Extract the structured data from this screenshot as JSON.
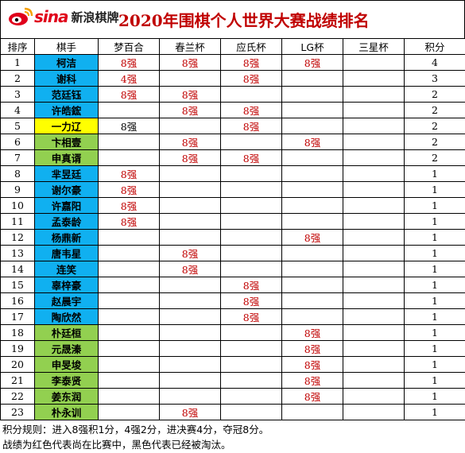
{
  "brand": {
    "logo_word": "sina",
    "logo_text": "新浪棋牌"
  },
  "title": "2020年围棋个人世界大赛战绩排名",
  "colors": {
    "alive": "#c00000",
    "eliminated": "#000000",
    "blue": "#10b0f0",
    "yellow": "#ffff00",
    "green": "#92d050"
  },
  "columns": [
    "排序",
    "棋手",
    "梦百合",
    "春兰杯",
    "应氏杯",
    "LG杯",
    "三星杯",
    "积分"
  ],
  "rows": [
    {
      "rank": "1",
      "name": "柯洁",
      "color": "blue",
      "cells": [
        {
          "t": "8强",
          "s": "red"
        },
        {
          "t": "8强",
          "s": "red"
        },
        {
          "t": "8强",
          "s": "red"
        },
        {
          "t": "8强",
          "s": "red"
        },
        {
          "t": "",
          "s": ""
        }
      ],
      "points": "4"
    },
    {
      "rank": "2",
      "name": "谢科",
      "color": "blue",
      "cells": [
        {
          "t": "4强",
          "s": "red"
        },
        {
          "t": "",
          "s": ""
        },
        {
          "t": "8强",
          "s": "red"
        },
        {
          "t": "",
          "s": ""
        },
        {
          "t": "",
          "s": ""
        }
      ],
      "points": "3"
    },
    {
      "rank": "3",
      "name": "范廷钰",
      "color": "blue",
      "cells": [
        {
          "t": "8强",
          "s": "red"
        },
        {
          "t": "8强",
          "s": "red"
        },
        {
          "t": "",
          "s": ""
        },
        {
          "t": "",
          "s": ""
        },
        {
          "t": "",
          "s": ""
        }
      ],
      "points": "2"
    },
    {
      "rank": "4",
      "name": "许皓鋐",
      "color": "blue",
      "cells": [
        {
          "t": "",
          "s": ""
        },
        {
          "t": "8强",
          "s": "red"
        },
        {
          "t": "8强",
          "s": "red"
        },
        {
          "t": "",
          "s": ""
        },
        {
          "t": "",
          "s": ""
        }
      ],
      "points": "2"
    },
    {
      "rank": "5",
      "name": "一力辽",
      "color": "yellow",
      "cells": [
        {
          "t": "8强",
          "s": "black"
        },
        {
          "t": "",
          "s": ""
        },
        {
          "t": "8强",
          "s": "red"
        },
        {
          "t": "",
          "s": ""
        },
        {
          "t": "",
          "s": ""
        }
      ],
      "points": "2"
    },
    {
      "rank": "6",
      "name": "卞相壹",
      "color": "green",
      "cells": [
        {
          "t": "",
          "s": ""
        },
        {
          "t": "8强",
          "s": "red"
        },
        {
          "t": "",
          "s": ""
        },
        {
          "t": "8强",
          "s": "red"
        },
        {
          "t": "",
          "s": ""
        }
      ],
      "points": "2"
    },
    {
      "rank": "7",
      "name": "申真谞",
      "color": "green",
      "cells": [
        {
          "t": "",
          "s": ""
        },
        {
          "t": "8强",
          "s": "red"
        },
        {
          "t": "8强",
          "s": "red"
        },
        {
          "t": "",
          "s": ""
        },
        {
          "t": "",
          "s": ""
        }
      ],
      "points": "2"
    },
    {
      "rank": "8",
      "name": "芈昱廷",
      "color": "blue",
      "cells": [
        {
          "t": "8强",
          "s": "red"
        },
        {
          "t": "",
          "s": ""
        },
        {
          "t": "",
          "s": ""
        },
        {
          "t": "",
          "s": ""
        },
        {
          "t": "",
          "s": ""
        }
      ],
      "points": "1"
    },
    {
      "rank": "9",
      "name": "谢尔豪",
      "color": "blue",
      "cells": [
        {
          "t": "8强",
          "s": "red"
        },
        {
          "t": "",
          "s": ""
        },
        {
          "t": "",
          "s": ""
        },
        {
          "t": "",
          "s": ""
        },
        {
          "t": "",
          "s": ""
        }
      ],
      "points": "1"
    },
    {
      "rank": "10",
      "name": "许嘉阳",
      "color": "blue",
      "cells": [
        {
          "t": "8强",
          "s": "red"
        },
        {
          "t": "",
          "s": ""
        },
        {
          "t": "",
          "s": ""
        },
        {
          "t": "",
          "s": ""
        },
        {
          "t": "",
          "s": ""
        }
      ],
      "points": "1"
    },
    {
      "rank": "11",
      "name": "孟泰龄",
      "color": "blue",
      "cells": [
        {
          "t": "8强",
          "s": "red"
        },
        {
          "t": "",
          "s": ""
        },
        {
          "t": "",
          "s": ""
        },
        {
          "t": "",
          "s": ""
        },
        {
          "t": "",
          "s": ""
        }
      ],
      "points": "1"
    },
    {
      "rank": "12",
      "name": "杨鼎新",
      "color": "blue",
      "cells": [
        {
          "t": "",
          "s": ""
        },
        {
          "t": "",
          "s": ""
        },
        {
          "t": "",
          "s": ""
        },
        {
          "t": "8强",
          "s": "red"
        },
        {
          "t": "",
          "s": ""
        }
      ],
      "points": "1"
    },
    {
      "rank": "13",
      "name": "唐韦星",
      "color": "blue",
      "cells": [
        {
          "t": "",
          "s": ""
        },
        {
          "t": "8强",
          "s": "red"
        },
        {
          "t": "",
          "s": ""
        },
        {
          "t": "",
          "s": ""
        },
        {
          "t": "",
          "s": ""
        }
      ],
      "points": "1"
    },
    {
      "rank": "14",
      "name": "连笑",
      "color": "blue",
      "cells": [
        {
          "t": "",
          "s": ""
        },
        {
          "t": "8强",
          "s": "red"
        },
        {
          "t": "",
          "s": ""
        },
        {
          "t": "",
          "s": ""
        },
        {
          "t": "",
          "s": ""
        }
      ],
      "points": "1"
    },
    {
      "rank": "15",
      "name": "辜梓豪",
      "color": "blue",
      "cells": [
        {
          "t": "",
          "s": ""
        },
        {
          "t": "",
          "s": ""
        },
        {
          "t": "8强",
          "s": "red"
        },
        {
          "t": "",
          "s": ""
        },
        {
          "t": "",
          "s": ""
        }
      ],
      "points": "1"
    },
    {
      "rank": "16",
      "name": "赵晨宇",
      "color": "blue",
      "cells": [
        {
          "t": "",
          "s": ""
        },
        {
          "t": "",
          "s": ""
        },
        {
          "t": "8强",
          "s": "red"
        },
        {
          "t": "",
          "s": ""
        },
        {
          "t": "",
          "s": ""
        }
      ],
      "points": "1"
    },
    {
      "rank": "17",
      "name": "陶欣然",
      "color": "blue",
      "cells": [
        {
          "t": "",
          "s": ""
        },
        {
          "t": "",
          "s": ""
        },
        {
          "t": "8强",
          "s": "red"
        },
        {
          "t": "",
          "s": ""
        },
        {
          "t": "",
          "s": ""
        }
      ],
      "points": "1"
    },
    {
      "rank": "18",
      "name": "朴廷桓",
      "color": "green",
      "cells": [
        {
          "t": "",
          "s": ""
        },
        {
          "t": "",
          "s": ""
        },
        {
          "t": "",
          "s": ""
        },
        {
          "t": "8强",
          "s": "red"
        },
        {
          "t": "",
          "s": ""
        }
      ],
      "points": "1"
    },
    {
      "rank": "19",
      "name": "元晟溱",
      "color": "green",
      "cells": [
        {
          "t": "",
          "s": ""
        },
        {
          "t": "",
          "s": ""
        },
        {
          "t": "",
          "s": ""
        },
        {
          "t": "8强",
          "s": "red"
        },
        {
          "t": "",
          "s": ""
        }
      ],
      "points": "1"
    },
    {
      "rank": "20",
      "name": "申旻埈",
      "color": "green",
      "cells": [
        {
          "t": "",
          "s": ""
        },
        {
          "t": "",
          "s": ""
        },
        {
          "t": "",
          "s": ""
        },
        {
          "t": "8强",
          "s": "red"
        },
        {
          "t": "",
          "s": ""
        }
      ],
      "points": "1"
    },
    {
      "rank": "21",
      "name": "李泰贤",
      "color": "green",
      "cells": [
        {
          "t": "",
          "s": ""
        },
        {
          "t": "",
          "s": ""
        },
        {
          "t": "",
          "s": ""
        },
        {
          "t": "8强",
          "s": "red"
        },
        {
          "t": "",
          "s": ""
        }
      ],
      "points": "1"
    },
    {
      "rank": "22",
      "name": "姜东润",
      "color": "green",
      "cells": [
        {
          "t": "",
          "s": ""
        },
        {
          "t": "",
          "s": ""
        },
        {
          "t": "",
          "s": ""
        },
        {
          "t": "8强",
          "s": "red"
        },
        {
          "t": "",
          "s": ""
        }
      ],
      "points": "1"
    },
    {
      "rank": "23",
      "name": "朴永训",
      "color": "green",
      "cells": [
        {
          "t": "",
          "s": ""
        },
        {
          "t": "8强",
          "s": "red"
        },
        {
          "t": "",
          "s": ""
        },
        {
          "t": "",
          "s": ""
        },
        {
          "t": "",
          "s": ""
        }
      ],
      "points": "1"
    }
  ],
  "notes": [
    "积分规则：进入8强积1分，4强2分，进决赛4分，夺冠8分。",
    "战绩为红色代表尚在比赛中，黑色代表已经被淘汰。"
  ]
}
